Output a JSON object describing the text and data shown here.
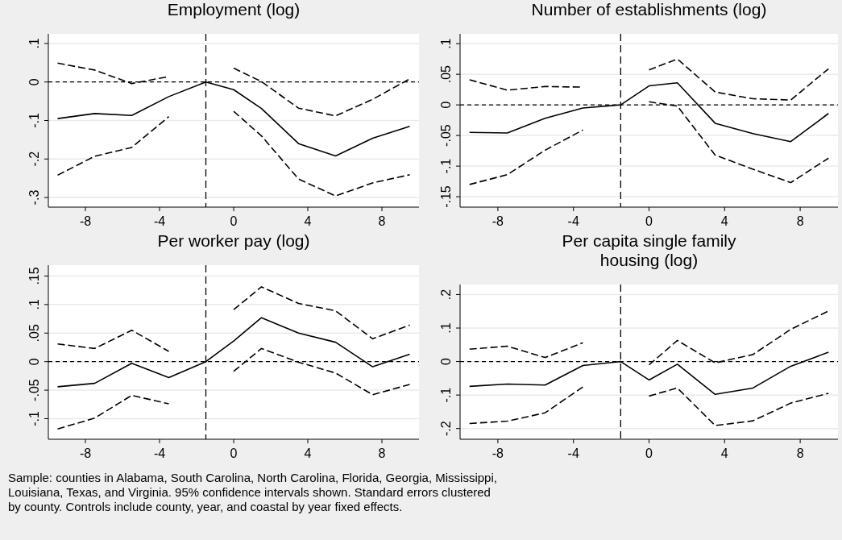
{
  "chart_data": [
    {
      "type": "line",
      "title": "Employment (log)",
      "x": [
        -9.5,
        -7.5,
        -5.5,
        -3.5,
        -1.5,
        0,
        1.5,
        3.5,
        5.5,
        7.5,
        9.5
      ],
      "xlim": [
        -10,
        10
      ],
      "xticks": [
        -8,
        -4,
        0,
        4,
        8
      ],
      "ylim": [
        -0.325,
        0.125
      ],
      "yticks": [
        {
          "value": 0.1,
          "label": ".1"
        },
        {
          "value": 0,
          "label": "0"
        },
        {
          "value": -0.1,
          "label": "-.1"
        },
        {
          "value": -0.2,
          "label": "-.2"
        },
        {
          "value": -0.3,
          "label": "-.3"
        }
      ],
      "grid": "y",
      "ref_lines": [
        {
          "axis": "x",
          "value": -1.5,
          "line_style": "dashed"
        },
        {
          "axis": "y",
          "value": 0,
          "line_style": "dashed"
        }
      ],
      "series": [
        {
          "color": "#000000",
          "line_style": "solid",
          "values": [
            -0.095,
            -0.082,
            -0.087,
            -0.038,
            0,
            -0.02,
            -0.069,
            -0.16,
            -0.192,
            -0.146,
            -0.115
          ]
        },
        {
          "color": "#000000",
          "line_style": "dashed",
          "values": [
            0.049,
            0.031,
            -0.004,
            0.014,
            null,
            0.036,
            0.001,
            -0.068,
            -0.088,
            -0.045,
            0.008
          ]
        },
        {
          "color": "#000000",
          "line_style": "dashed",
          "values": [
            -0.242,
            -0.193,
            -0.17,
            -0.09,
            null,
            -0.076,
            -0.14,
            -0.252,
            -0.296,
            -0.262,
            -0.241
          ]
        }
      ]
    },
    {
      "type": "line",
      "title": "Number of establishments (log)",
      "x": [
        -9.5,
        -7.5,
        -5.5,
        -3.5,
        -1.5,
        0,
        1.5,
        3.5,
        5.5,
        7.5,
        9.5
      ],
      "xlim": [
        -10,
        10
      ],
      "xticks": [
        -8,
        -4,
        0,
        4,
        8
      ],
      "ylim": [
        -0.167,
        0.116
      ],
      "yticks": [
        {
          "value": 0.1,
          "label": ".1"
        },
        {
          "value": 0.05,
          "label": ".05"
        },
        {
          "value": 0,
          "label": "0"
        },
        {
          "value": -0.05,
          "label": "-.05"
        },
        {
          "value": -0.1,
          "label": "-.1"
        },
        {
          "value": -0.15,
          "label": "-.15"
        }
      ],
      "grid": "y",
      "ref_lines": [
        {
          "axis": "x",
          "value": -1.5,
          "line_style": "dashed"
        },
        {
          "axis": "y",
          "value": 0,
          "line_style": "dashed"
        }
      ],
      "series": [
        {
          "color": "#000000",
          "line_style": "solid",
          "values": [
            -0.045,
            -0.046,
            -0.022,
            -0.005,
            0,
            0.031,
            0.036,
            -0.03,
            -0.047,
            -0.06,
            -0.014
          ]
        },
        {
          "color": "#000000",
          "line_style": "dashed",
          "values": [
            0.041,
            0.024,
            0.03,
            0.029,
            null,
            0.057,
            0.075,
            0.021,
            0.01,
            0.008,
            0.059
          ]
        },
        {
          "color": "#000000",
          "line_style": "dashed",
          "values": [
            -0.13,
            -0.114,
            -0.074,
            -0.041,
            null,
            0.005,
            -0.002,
            -0.082,
            -0.105,
            -0.127,
            -0.087
          ]
        }
      ]
    },
    {
      "type": "line",
      "title": "Per worker pay (log)",
      "x": [
        -9.5,
        -7.5,
        -5.5,
        -3.5,
        -1.5,
        0,
        1.5,
        3.5,
        5.5,
        7.5,
        9.5
      ],
      "xlim": [
        -10,
        10
      ],
      "xticks": [
        -8,
        -4,
        0,
        4,
        8
      ],
      "ylim": [
        -0.136,
        0.169
      ],
      "yticks": [
        {
          "value": 0.15,
          "label": ".15"
        },
        {
          "value": 0.1,
          "label": ".1"
        },
        {
          "value": 0.05,
          "label": ".05"
        },
        {
          "value": 0,
          "label": "0"
        },
        {
          "value": -0.05,
          "label": "-.05"
        },
        {
          "value": -0.1,
          "label": "-.1"
        }
      ],
      "grid": "y",
      "ref_lines": [
        {
          "axis": "x",
          "value": -1.5,
          "line_style": "dashed"
        },
        {
          "axis": "y",
          "value": 0,
          "line_style": "dashed"
        }
      ],
      "annotations": [
        "Sample: counties in Alabama, South Carolina, North Carolina, Florida, Georgia, Mississippi, Louisiana, Texas, and Virginia. 95% confidence intervals shown. Standard errors clustered by county. Controls include county, year, and coastal by year fixed effects."
      ],
      "series": [
        {
          "color": "#000000",
          "line_style": "solid",
          "values": [
            -0.044,
            -0.038,
            -0.003,
            -0.028,
            0,
            0.036,
            0.077,
            0.05,
            0.034,
            -0.009,
            0.013
          ]
        },
        {
          "color": "#000000",
          "line_style": "dashed",
          "values": [
            0.031,
            0.023,
            0.055,
            0.018,
            null,
            0.091,
            0.131,
            0.102,
            0.089,
            0.04,
            0.064
          ]
        },
        {
          "color": "#000000",
          "line_style": "dashed",
          "values": [
            -0.118,
            -0.099,
            -0.059,
            -0.074,
            null,
            -0.017,
            0.023,
            -0.001,
            -0.02,
            -0.058,
            -0.04
          ]
        }
      ]
    },
    {
      "type": "line",
      "title": "Per capita single family\nhousing (log)",
      "x": [
        -9.5,
        -7.5,
        -5.5,
        -3.5,
        -1.5,
        0,
        1.5,
        3.5,
        5.5,
        7.5,
        9.5
      ],
      "xlim": [
        -10,
        10
      ],
      "xticks": [
        -8,
        -4,
        0,
        4,
        8
      ],
      "ylim": [
        -0.232,
        0.23
      ],
      "yticks": [
        {
          "value": 0.2,
          "label": ".2"
        },
        {
          "value": 0.1,
          "label": ".1"
        },
        {
          "value": 0,
          "label": "0"
        },
        {
          "value": -0.1,
          "label": "-.1"
        },
        {
          "value": -0.2,
          "label": "-.2"
        }
      ],
      "grid": "y",
      "ref_lines": [
        {
          "axis": "x",
          "value": -1.5,
          "line_style": "dashed"
        },
        {
          "axis": "y",
          "value": 0,
          "line_style": "dashed"
        }
      ],
      "series": [
        {
          "color": "#000000",
          "line_style": "solid",
          "values": [
            -0.074,
            -0.067,
            -0.07,
            -0.012,
            0,
            -0.055,
            -0.008,
            -0.098,
            -0.079,
            -0.014,
            0.028
          ]
        },
        {
          "color": "#000000",
          "line_style": "dashed",
          "values": [
            0.037,
            0.046,
            0.012,
            0.056,
            null,
            -0.01,
            0.063,
            -0.004,
            0.021,
            0.096,
            0.151
          ]
        },
        {
          "color": "#000000",
          "line_style": "dashed",
          "values": [
            -0.185,
            -0.178,
            -0.153,
            -0.076,
            null,
            -0.103,
            -0.079,
            -0.191,
            -0.177,
            -0.124,
            -0.095
          ]
        }
      ]
    }
  ]
}
